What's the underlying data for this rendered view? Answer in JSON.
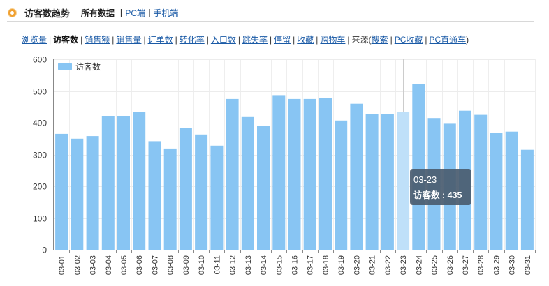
{
  "header": {
    "title": "访客数趋势",
    "scope_all": "所有数据",
    "scope_pc": "PC端",
    "scope_mobile": "手机端"
  },
  "metrics": {
    "items": [
      "浏览量",
      "访客数",
      "销售额",
      "销售量",
      "订单数",
      "转化率",
      "入口数",
      "跳失率",
      "停留",
      "收藏",
      "购物车"
    ],
    "active_index": 1,
    "source_label": "来源(",
    "source_items": [
      "搜索",
      "PC收藏",
      "PC直通车"
    ],
    "source_close": ")"
  },
  "colors": {
    "bar": "#88c5f3",
    "bar_highlight": "#bfe0f9",
    "tooltip_bg": "#4a5c70",
    "accent_orange": "#f0a030"
  },
  "tooltip": {
    "date": "03-23",
    "label": "访客数 : 435"
  },
  "chart_data": {
    "type": "bar",
    "categories": [
      "03-01",
      "03-02",
      "03-03",
      "03-04",
      "03-05",
      "03-06",
      "03-07",
      "03-08",
      "03-09",
      "03-10",
      "03-11",
      "03-12",
      "03-13",
      "03-14",
      "03-15",
      "03-16",
      "03-17",
      "03-18",
      "03-19",
      "03-20",
      "03-21",
      "03-22",
      "03-23",
      "03-24",
      "03-25",
      "03-26",
      "03-27",
      "03-28",
      "03-29",
      "03-30",
      "03-31"
    ],
    "series": [
      {
        "name": "访客数",
        "values": [
          365,
          350,
          358,
          420,
          420,
          433,
          342,
          319,
          383,
          363,
          328,
          475,
          418,
          390,
          487,
          475,
          475,
          477,
          407,
          460,
          427,
          428,
          435,
          522,
          415,
          397,
          438,
          425,
          368,
          372,
          315
        ]
      }
    ],
    "yticks": [
      0,
      100,
      200,
      300,
      400,
      500,
      600
    ],
    "ylim": [
      0,
      600
    ],
    "highlight_category": "03-23",
    "legend_position": "top-left",
    "grid": true
  }
}
